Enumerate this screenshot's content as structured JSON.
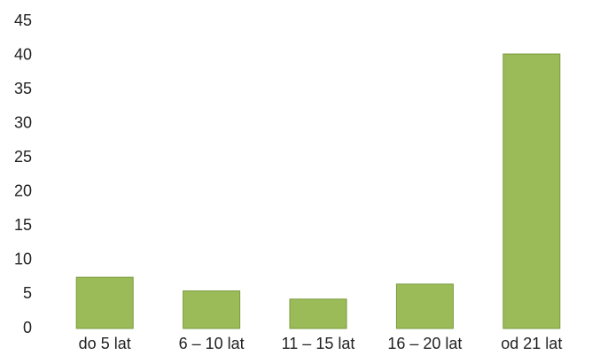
{
  "chart_data": {
    "type": "bar",
    "title": "",
    "xlabel": "",
    "ylabel": "",
    "categories": [
      "do 5 lat",
      "6 – 10 lat",
      "11 – 15 lat",
      "16 – 20 lat",
      "od 21 lat"
    ],
    "values": [
      7.5,
      5.5,
      4.3,
      6.5,
      40.2
    ],
    "ylim": [
      0,
      45
    ],
    "yticks": [
      0,
      5,
      10,
      15,
      20,
      25,
      30,
      35,
      40,
      45
    ],
    "ytick_labels": [
      "0",
      "5",
      "10",
      "15",
      "20",
      "25",
      "30",
      "35",
      "40",
      "45"
    ],
    "grid": false,
    "legend": "none",
    "bar_color": "#9bbb59",
    "bar_edge_color": "#7a9a3e"
  }
}
